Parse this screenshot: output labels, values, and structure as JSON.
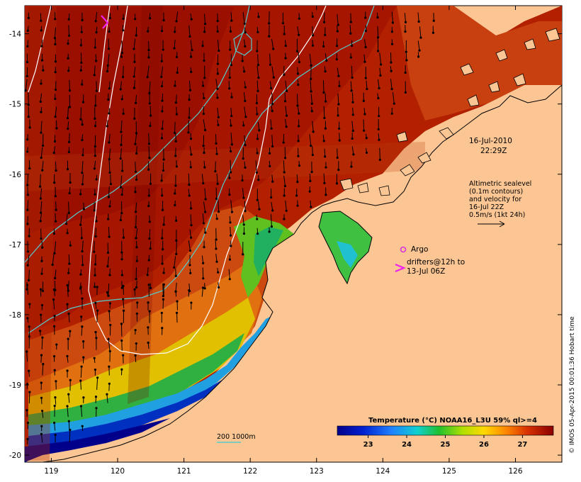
{
  "map": {
    "title_date": "16-Jul-2010",
    "title_time": "22:29Z",
    "lon_ticks": [
      "119",
      "120",
      "121",
      "122",
      "123",
      "124",
      "125",
      "126"
    ],
    "lat_ticks": [
      "-14",
      "-15",
      "-16",
      "-17",
      "-18",
      "-19",
      "-20"
    ],
    "lon_range": [
      118.6,
      126.7
    ],
    "lat_range": [
      -20.1,
      -13.6
    ],
    "altimetry_note": [
      "Altimetric sealevel",
      "(0.1m contours)",
      "and velocity for",
      "16-Jul 22Z",
      "0.5m/s (1kt 24h)"
    ],
    "argo_label": "Argo",
    "drifter_label": [
      "drifters@12h to",
      "13-Jul 06Z"
    ],
    "depth_legend": "200  1000m",
    "colorbar": {
      "title": "Temperature (°C) NOAA16_L3U 59% ql>=4",
      "ticks": [
        "23",
        "24",
        "25",
        "26",
        "27"
      ],
      "range": [
        22.2,
        27.8
      ]
    },
    "credit": "© IMOS 05-Apr-2015 00:01:36 Hobart time",
    "colors": {
      "land": "#fbc694",
      "contour_200": "#55cccc",
      "contour_1000": "#ffffff",
      "argo": "#dd33dd",
      "drifter": "#ee22ee"
    }
  }
}
